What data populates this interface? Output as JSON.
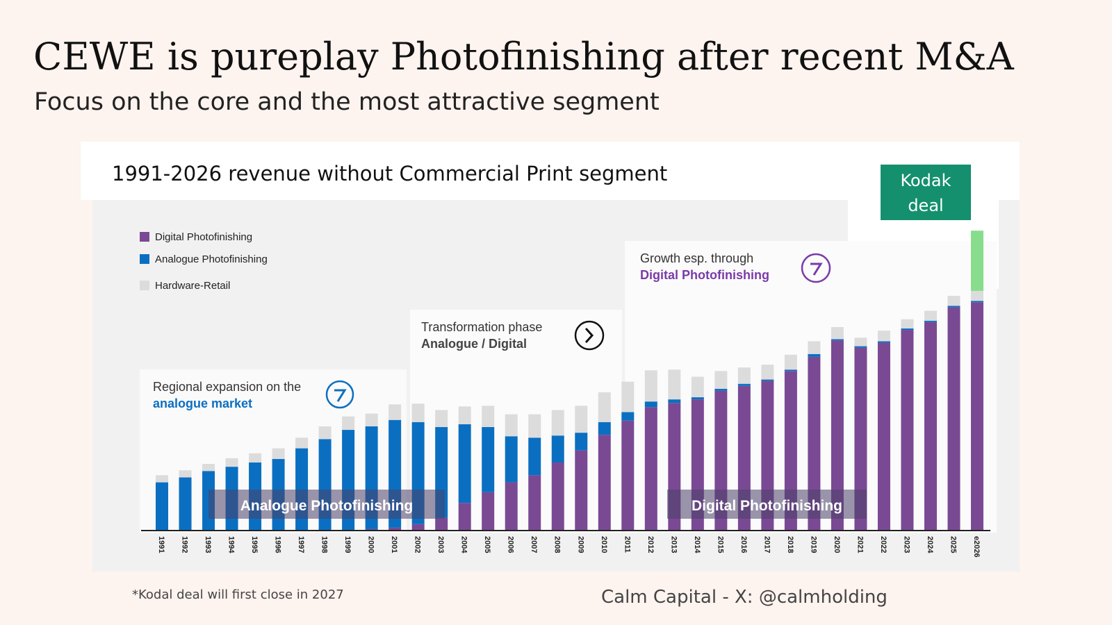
{
  "slide": {
    "title": "CEWE is pureplay Photofinishing after recent M&A",
    "subtitle": "Focus on the core and the most attractive segment",
    "footnote": "*Kodal deal will first close in 2027",
    "credit": "Calm Capital - X: @calmholding"
  },
  "chart_data": {
    "type": "bar",
    "stacked": true,
    "title": "1991-2026 revenue without Commercial Print segment",
    "categories": [
      "1991",
      "1992",
      "1993",
      "1994",
      "1995",
      "1996",
      "1997",
      "1998",
      "1999",
      "2000",
      "2001",
      "2002",
      "2003",
      "2004",
      "2005",
      "2006",
      "2007",
      "2008",
      "2009",
      "2010",
      "2011",
      "2012",
      "2013",
      "2014",
      "2015",
      "2016",
      "2017",
      "2018",
      "2019",
      "2020",
      "2021",
      "2022",
      "2023",
      "2024",
      "2025",
      "e2026"
    ],
    "series": [
      {
        "name": "Digital Photofinishing",
        "color": "#7a4994",
        "values": [
          0,
          0,
          0,
          0,
          0,
          0,
          0,
          0,
          0,
          2,
          4,
          9,
          18,
          39,
          54,
          68,
          78,
          96,
          113,
          135,
          155,
          174,
          180,
          185,
          197,
          204,
          211,
          225,
          245,
          268,
          258,
          265,
          283,
          294,
          315,
          322
        ]
      },
      {
        "name": "Analogue Photofinishing",
        "color": "#0b6fc1",
        "values": [
          68,
          75,
          84,
          90,
          96,
          101,
          116,
          129,
          142,
          145,
          152,
          144,
          128,
          111,
          92,
          65,
          53,
          38,
          25,
          18,
          12,
          8,
          5,
          3,
          3,
          3,
          2,
          2,
          4,
          2,
          2,
          2,
          2,
          2,
          2,
          2
        ]
      },
      {
        "name": "Hardware-Retail",
        "color": "#dcdcdc",
        "values": [
          10,
          10,
          10,
          12,
          13,
          15,
          15,
          18,
          19,
          18,
          22,
          26,
          24,
          25,
          30,
          31,
          33,
          36,
          38,
          42,
          43,
          44,
          42,
          29,
          25,
          23,
          21,
          21,
          18,
          17,
          12,
          15,
          13,
          14,
          14,
          14
        ]
      }
    ],
    "kodak_deal": {
      "label": "Kodak deal",
      "color": "#88dd8c",
      "value": 85
    },
    "ylim": [
      0,
      430
    ],
    "annotations": [
      {
        "line1": "Regional expansion on the",
        "line2": "analogue market",
        "color": "#0b6fc1"
      },
      {
        "line1": "Transformation phase",
        "line2": "Analogue / Digital",
        "color": "#444444"
      },
      {
        "line1": "Growth esp. through",
        "line2": "Digital Photofinishing",
        "color": "#7a3aa8"
      }
    ],
    "band_labels": [
      "Analogue Photofinishing",
      "Digital Photofinishing"
    ]
  }
}
